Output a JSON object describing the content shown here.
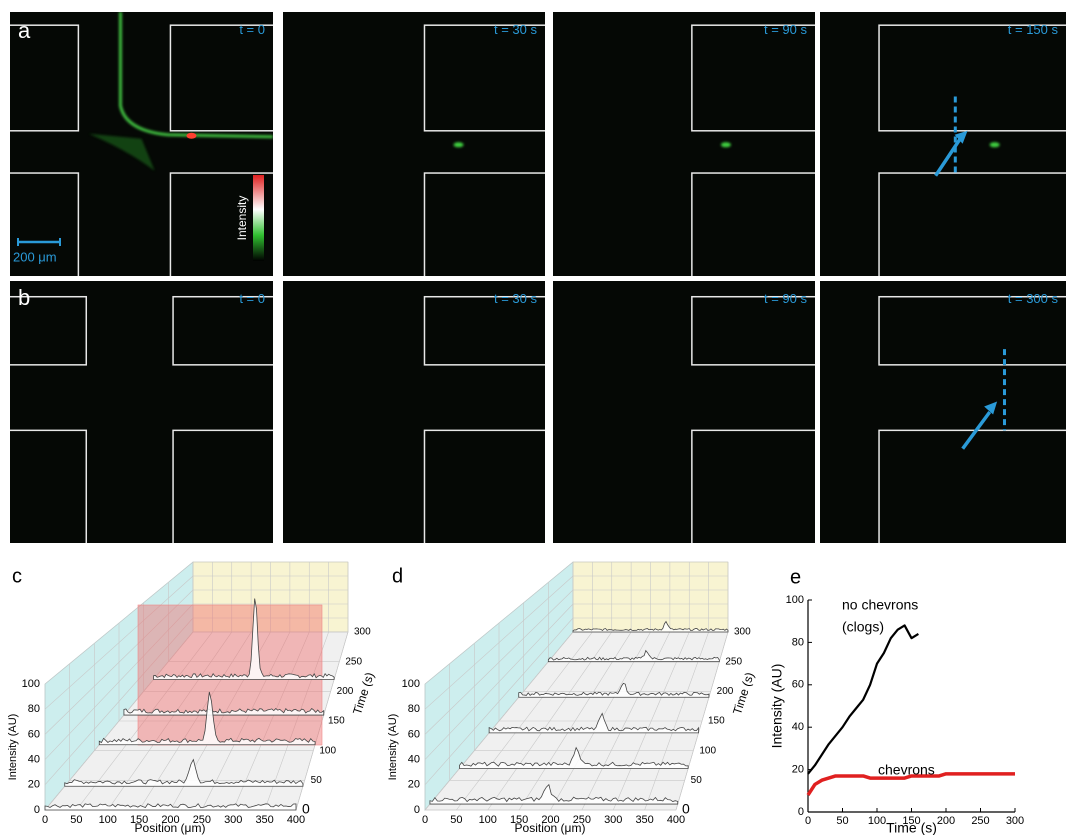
{
  "panels": {
    "a": {
      "label": "a",
      "times": [
        "t = 0",
        "t = 30 s",
        "t = 90 s",
        "t = 150 s"
      ],
      "scale_bar": "200 μm",
      "colorbar_label": "Intensity"
    },
    "b": {
      "label": "b",
      "times": [
        "t = 0",
        "t = 30 s",
        "t = 90 s",
        "t = 300 s"
      ]
    }
  },
  "waterfalls": [
    {
      "label": "c",
      "y_label": "Intensity (AU)",
      "x_label": "Position (μm)",
      "z_label": "Time (s)",
      "yticks": [
        0,
        20,
        40,
        60,
        80,
        100
      ],
      "xticks": [
        0,
        50,
        100,
        150,
        200,
        250,
        300,
        350,
        400
      ],
      "zticks": [
        0,
        50,
        100,
        150,
        200,
        250,
        300
      ]
    },
    {
      "label": "d",
      "y_label": "Intensity (AU)",
      "x_label": "Position (μm)",
      "z_label": "Time (s)",
      "yticks": [
        0,
        20,
        40,
        60,
        80,
        100
      ],
      "xticks": [
        0,
        50,
        100,
        150,
        200,
        250,
        300,
        350,
        400
      ],
      "zticks": [
        0,
        50,
        100,
        150,
        200,
        250,
        300
      ]
    }
  ],
  "chart_data": {
    "type": "line",
    "label": "e",
    "x_label": "Time (s)",
    "y_label": "Intensity (AU)",
    "xlim": [
      0,
      300
    ],
    "ylim": [
      0,
      100
    ],
    "xticks": [
      0,
      50,
      100,
      150,
      200,
      250,
      300
    ],
    "yticks": [
      0,
      20,
      40,
      60,
      80,
      100
    ],
    "annotations": [
      "no chevrons",
      "(clogs)",
      "chevrons"
    ],
    "series": [
      {
        "color": "#000000",
        "x": [
          0,
          10,
          20,
          30,
          40,
          50,
          60,
          70,
          80,
          90,
          100,
          110,
          120,
          130,
          140,
          150,
          160
        ],
        "values": [
          18,
          22,
          27,
          32,
          36,
          40,
          45,
          49,
          53,
          60,
          70,
          75,
          82,
          86,
          88,
          82,
          84
        ]
      },
      {
        "color": "#e02020",
        "x": [
          0,
          10,
          20,
          30,
          40,
          50,
          60,
          70,
          80,
          90,
          100,
          110,
          120,
          130,
          140,
          150,
          160,
          170,
          180,
          190,
          200,
          210,
          220,
          230,
          240,
          250,
          260,
          270,
          280,
          290,
          300
        ],
        "values": [
          8,
          13,
          15,
          16,
          17,
          17,
          17,
          17,
          17,
          16,
          16,
          16,
          16,
          16,
          16,
          17,
          17,
          17,
          17,
          17,
          18,
          18,
          18,
          18,
          18,
          18,
          18,
          18,
          18,
          18,
          18
        ]
      }
    ]
  }
}
